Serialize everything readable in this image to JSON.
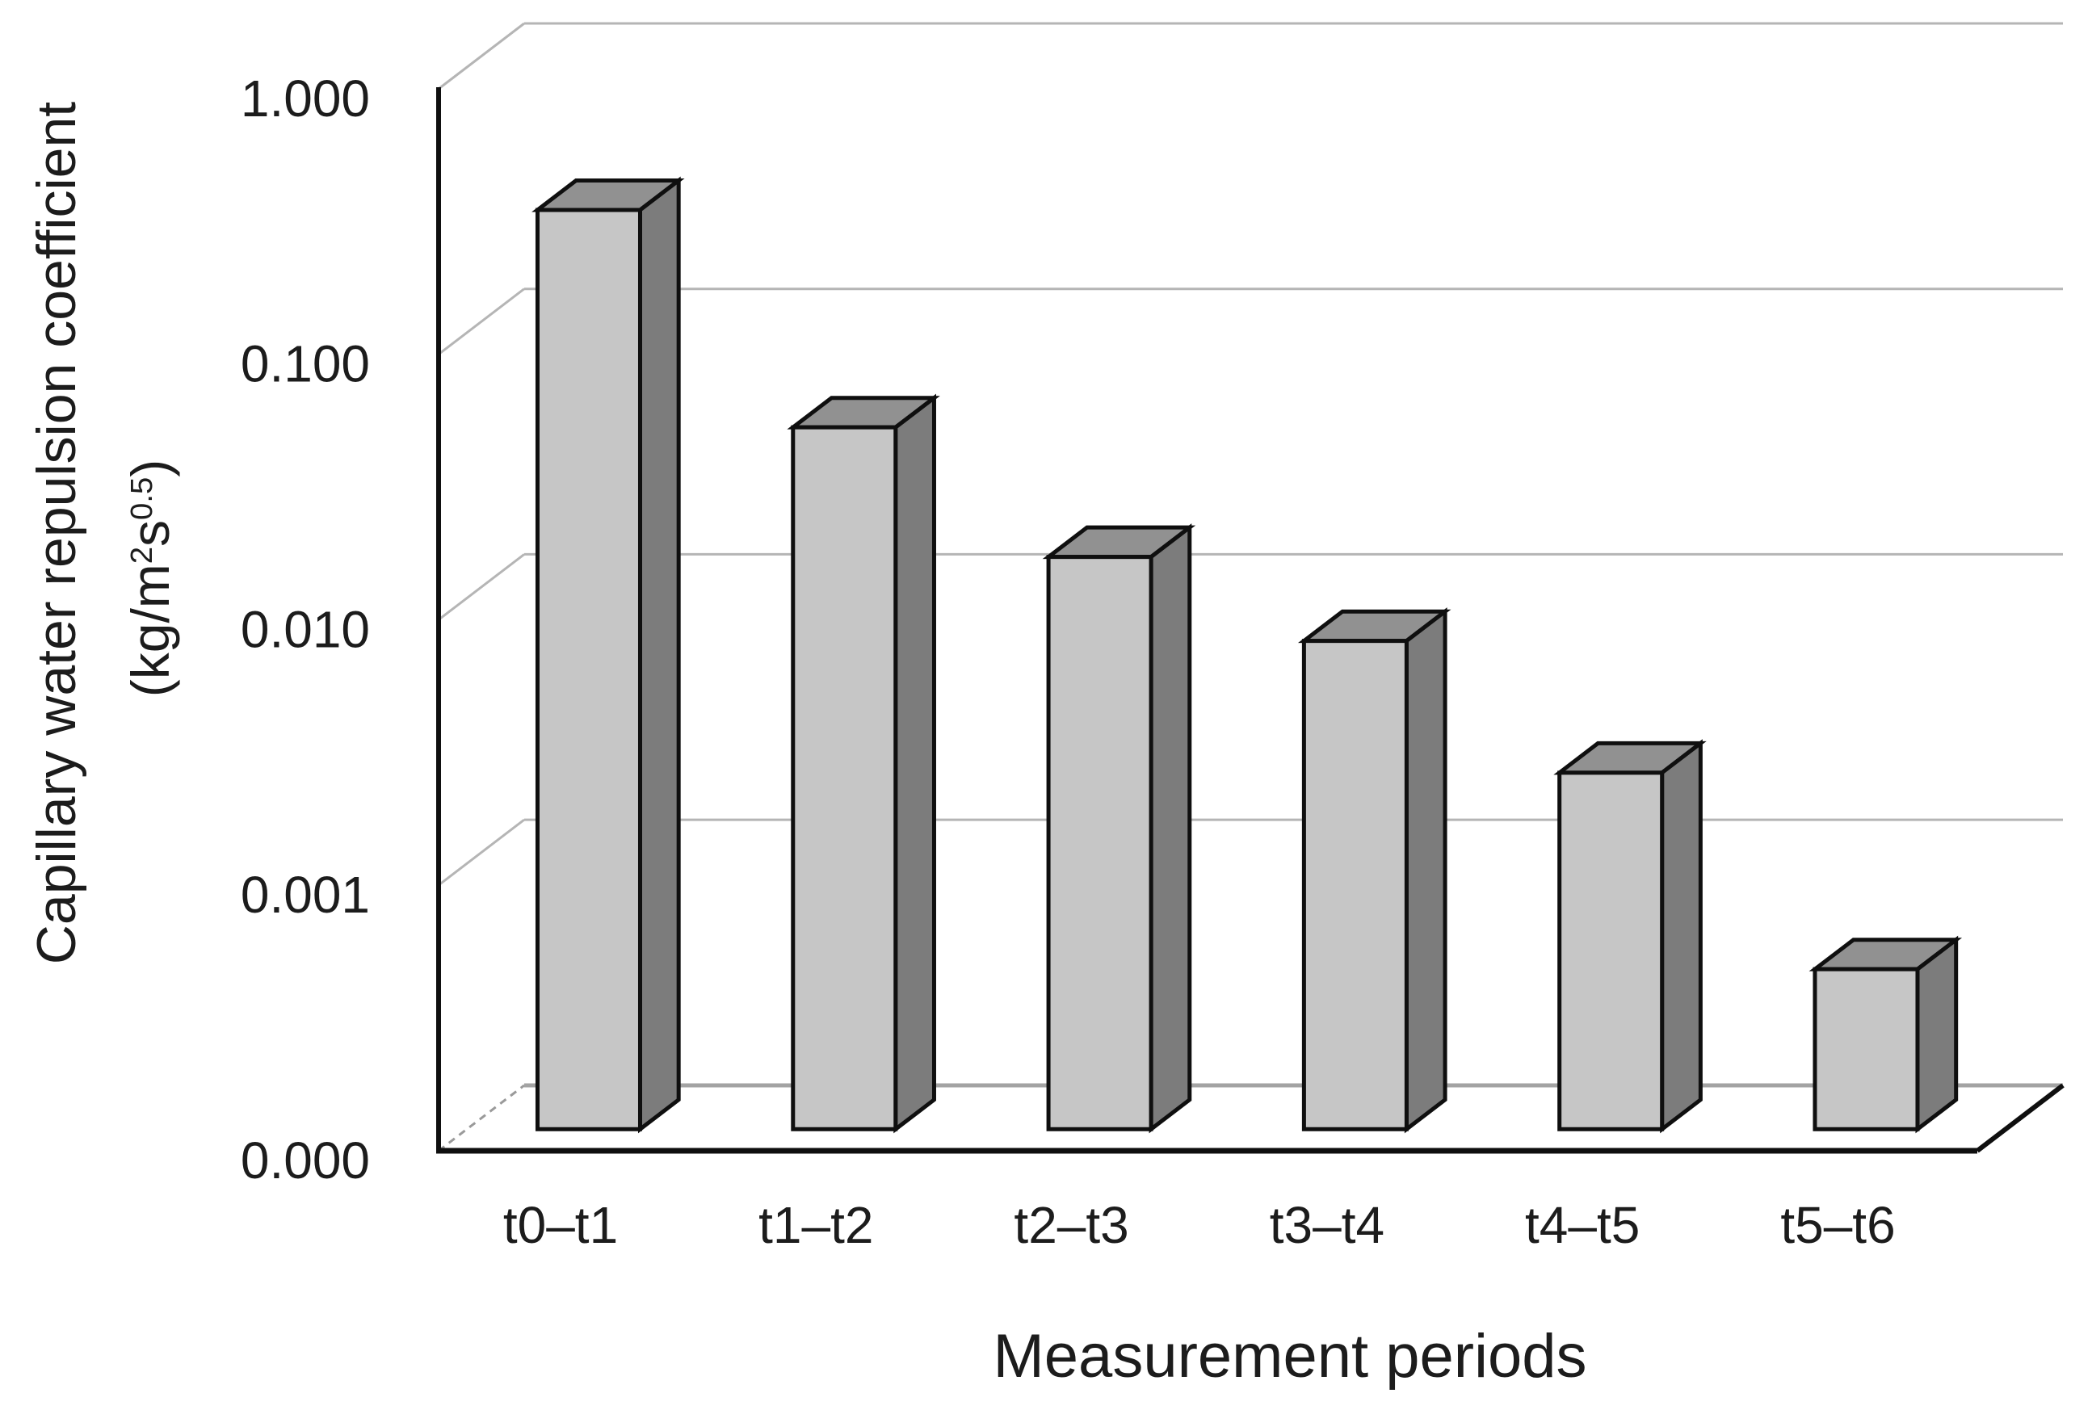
{
  "chart_data": {
    "type": "bar",
    "subtype": "3d-column",
    "title": "",
    "xlabel": "Measurement periods",
    "ylabel": "Capillary water repulsion coefficient",
    "ylabel_unit_parts": {
      "prefix": "(kg/m",
      "sup1": "2",
      "mid": "s",
      "sup2": "0.5",
      "suffix": ")"
    },
    "categories": [
      "t0–t1",
      "t1–t2",
      "t2–t3",
      "t3–t4",
      "t4–t5",
      "t5–t6"
    ],
    "values": [
      0.29,
      0.044,
      0.0143,
      0.0069,
      0.0022,
      0.0004
    ],
    "series": [
      {
        "name": "Capillary water repulsion coefficient",
        "values": [
          0.29,
          0.044,
          0.0143,
          0.0069,
          0.0022,
          0.0004
        ]
      }
    ],
    "y_axis": {
      "scale": "log",
      "tick_labels": [
        "1.000",
        "0.100",
        "0.010",
        "0.001",
        "0.000"
      ],
      "tick_values": [
        1,
        0.1,
        0.01,
        0.001,
        0
      ],
      "ylim_top": 1.0,
      "baseline_label": "0.000"
    },
    "grid": true,
    "legend": false,
    "colors": {
      "bar_front": "#c6c6c6",
      "bar_top": "#919191",
      "bar_side": "#7c7c7c",
      "bar_outline": "#0f0f0f",
      "gridline": "#b5b5b5",
      "floor_back_edge": "#a3a3a3",
      "floor_left_edge": "#9a9a9a",
      "axis": "#0f0f0f",
      "text": "#1c1c1c",
      "background": "#ffffff"
    }
  }
}
